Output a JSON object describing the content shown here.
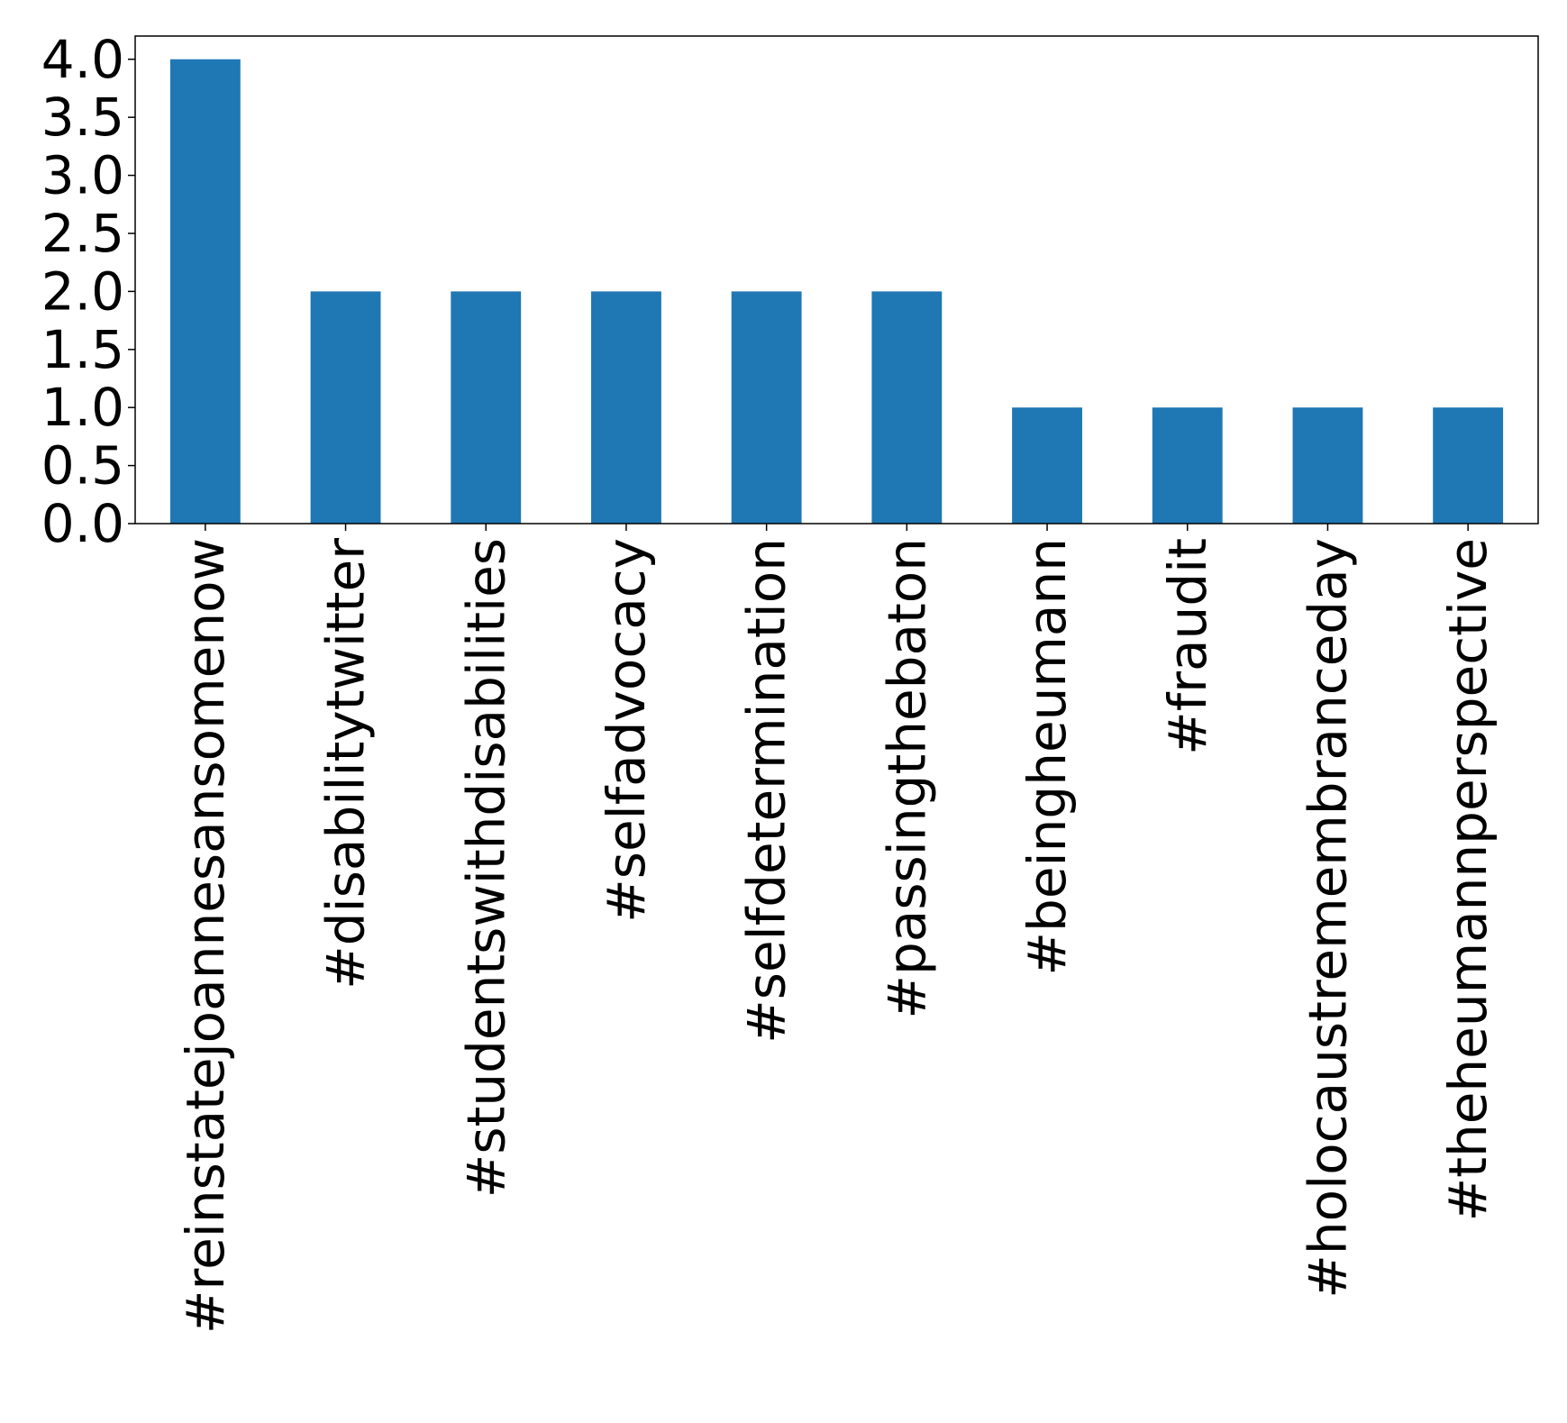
{
  "chart_data": {
    "type": "bar",
    "categories": [
      "#reinstatejoannesansomenow",
      "#disabilitytwitter",
      "#studentswithdisabilities",
      "#selfadvocacy",
      "#selfdetermination",
      "#passingthebaton",
      "#beingheumann",
      "#fraudit",
      "#holocaustremembranceday",
      "#theheumannperspective"
    ],
    "values": [
      4,
      2,
      2,
      2,
      2,
      2,
      1,
      1,
      1,
      1
    ],
    "title": "",
    "xlabel": "",
    "ylabel": "",
    "ylim": [
      0,
      4.2
    ],
    "yticks": [
      "0.0",
      "0.5",
      "1.0",
      "1.5",
      "2.0",
      "2.5",
      "3.0",
      "3.5",
      "4.0"
    ],
    "grid": false,
    "bar_color": "#1f77b4"
  }
}
